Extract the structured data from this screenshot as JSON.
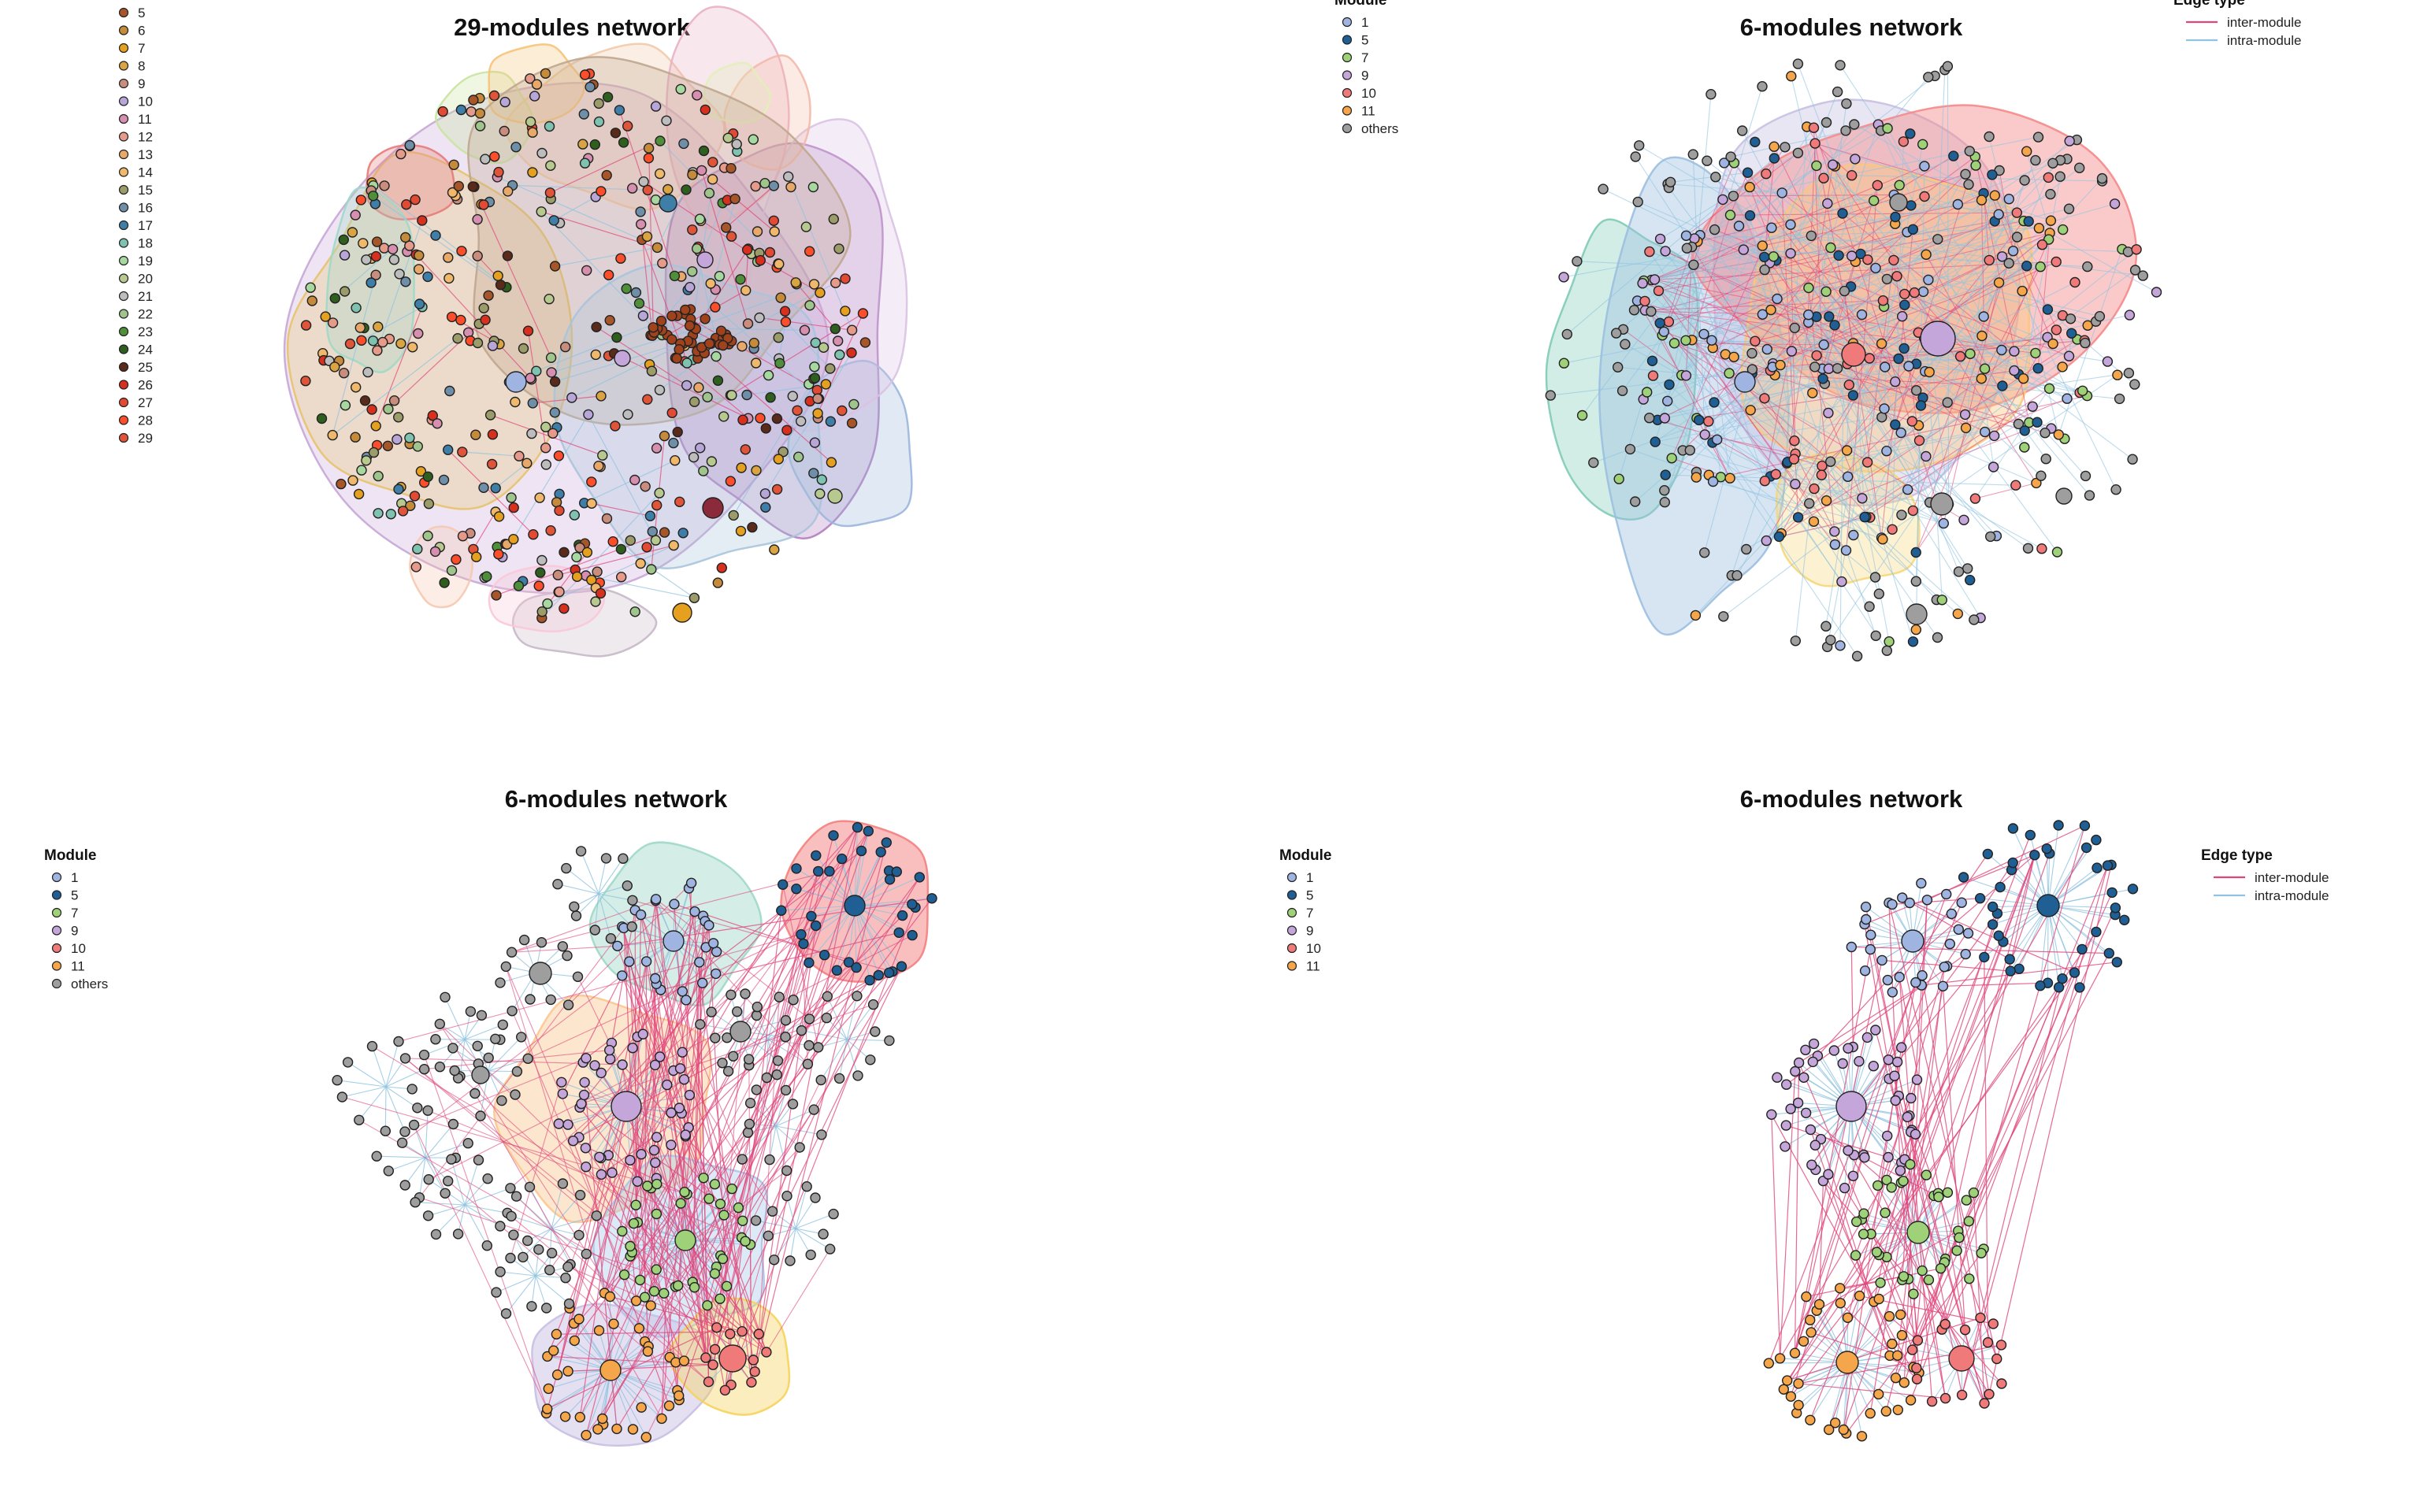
{
  "panels": [
    {
      "title": "29-modules network",
      "module_legend": {
        "title": "",
        "items": [
          {
            "label": "5",
            "color": "#a65628"
          },
          {
            "label": "6",
            "color": "#c58a3a"
          },
          {
            "label": "7",
            "color": "#e6a020"
          },
          {
            "label": "8",
            "color": "#d9a441"
          },
          {
            "label": "9",
            "color": "#c98d7e"
          },
          {
            "label": "10",
            "color": "#b8a6d9"
          },
          {
            "label": "11",
            "color": "#d68fae"
          },
          {
            "label": "12",
            "color": "#e59a8a"
          },
          {
            "label": "13",
            "color": "#e8a86a"
          },
          {
            "label": "14",
            "color": "#f0b86a"
          },
          {
            "label": "15",
            "color": "#9c9c6a"
          },
          {
            "label": "16",
            "color": "#6f8fa8"
          },
          {
            "label": "17",
            "color": "#3f7ea6"
          },
          {
            "label": "18",
            "color": "#7fc2b0"
          },
          {
            "label": "19",
            "color": "#a6d8a0"
          },
          {
            "label": "20",
            "color": "#b7c98e"
          },
          {
            "label": "21",
            "color": "#bdbdbd"
          },
          {
            "label": "22",
            "color": "#9fc58c"
          },
          {
            "label": "23",
            "color": "#4f8f3a"
          },
          {
            "label": "24",
            "color": "#2f5f1f"
          },
          {
            "label": "25",
            "color": "#5a2a1a"
          },
          {
            "label": "26",
            "color": "#d7301f"
          },
          {
            "label": "27",
            "color": "#e34a33"
          },
          {
            "label": "28",
            "color": "#fc4e2a"
          },
          {
            "label": "29",
            "color": "#e0553a"
          }
        ]
      },
      "edge_legend": null
    },
    {
      "title": "6-modules network",
      "module_legend": {
        "title": "Module",
        "items": [
          {
            "label": "1",
            "color": "#9fb4e0"
          },
          {
            "label": "5",
            "color": "#1f5f94"
          },
          {
            "label": "7",
            "color": "#9ed178"
          },
          {
            "label": "9",
            "color": "#c5a6da"
          },
          {
            "label": "10",
            "color": "#f07a7a"
          },
          {
            "label": "11",
            "color": "#f5a64a"
          },
          {
            "label": "others",
            "color": "#9e9e9e"
          }
        ]
      },
      "edge_legend": {
        "title": "Edge type",
        "items": [
          {
            "label": "inter-module",
            "color": "#e0457b"
          },
          {
            "label": "intra-module",
            "color": "#8fc3e0"
          }
        ]
      }
    },
    {
      "title": "6-modules network",
      "module_legend": {
        "title": "Module",
        "items": [
          {
            "label": "1",
            "color": "#9fb4e0"
          },
          {
            "label": "5",
            "color": "#1f5f94"
          },
          {
            "label": "7",
            "color": "#9ed178"
          },
          {
            "label": "9",
            "color": "#c5a6da"
          },
          {
            "label": "10",
            "color": "#f07a7a"
          },
          {
            "label": "11",
            "color": "#f5a64a"
          },
          {
            "label": "others",
            "color": "#9e9e9e"
          }
        ]
      },
      "edge_legend": null
    },
    {
      "title": "6-modules network",
      "module_legend": {
        "title": "Module",
        "items": [
          {
            "label": "1",
            "color": "#9fb4e0"
          },
          {
            "label": "5",
            "color": "#1f5f94"
          },
          {
            "label": "7",
            "color": "#9ed178"
          },
          {
            "label": "9",
            "color": "#c5a6da"
          },
          {
            "label": "10",
            "color": "#f07a7a"
          },
          {
            "label": "11",
            "color": "#f5a64a"
          }
        ]
      },
      "edge_legend": {
        "title": "Edge type",
        "items": [
          {
            "label": "inter-module",
            "color": "#e0457b"
          },
          {
            "label": "intra-module",
            "color": "#8fc3e0"
          }
        ]
      }
    }
  ],
  "style": {
    "inter_edge_color": "#e0457b",
    "intra_edge_color": "#8fc3e0",
    "node_stroke": "#222222",
    "others_color": "#9e9e9e"
  }
}
